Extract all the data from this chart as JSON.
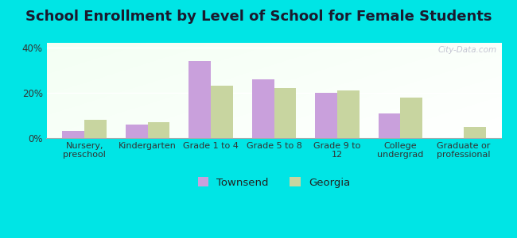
{
  "title": "School Enrollment by Level of School for Female Students",
  "categories": [
    "Nursery,\npreschool",
    "Kindergarten",
    "Grade 1 to 4",
    "Grade 5 to 8",
    "Grade 9 to\n12",
    "College\nundergrad",
    "Graduate or\nprofessional"
  ],
  "townsend": [
    3,
    6,
    34,
    26,
    20,
    11,
    0
  ],
  "georgia": [
    8,
    7,
    23,
    22,
    21,
    18,
    5
  ],
  "townsend_color": "#c9a0dc",
  "georgia_color": "#c8d5a0",
  "background_color": "#00e5e5",
  "plot_bg_top_left": "#e8f5e9",
  "plot_bg_top_right": "#ffffff",
  "plot_bg_bottom_left": "#e8f5e9",
  "plot_bg_bottom_right": "#ffffff",
  "ylim": [
    0,
    42
  ],
  "yticks": [
    0,
    20,
    40
  ],
  "ytick_labels": [
    "0%",
    "20%",
    "40%"
  ],
  "watermark": "City-Data.com",
  "legend_townsend": "Townsend",
  "legend_georgia": "Georgia",
  "title_fontsize": 13,
  "bar_width": 0.35
}
